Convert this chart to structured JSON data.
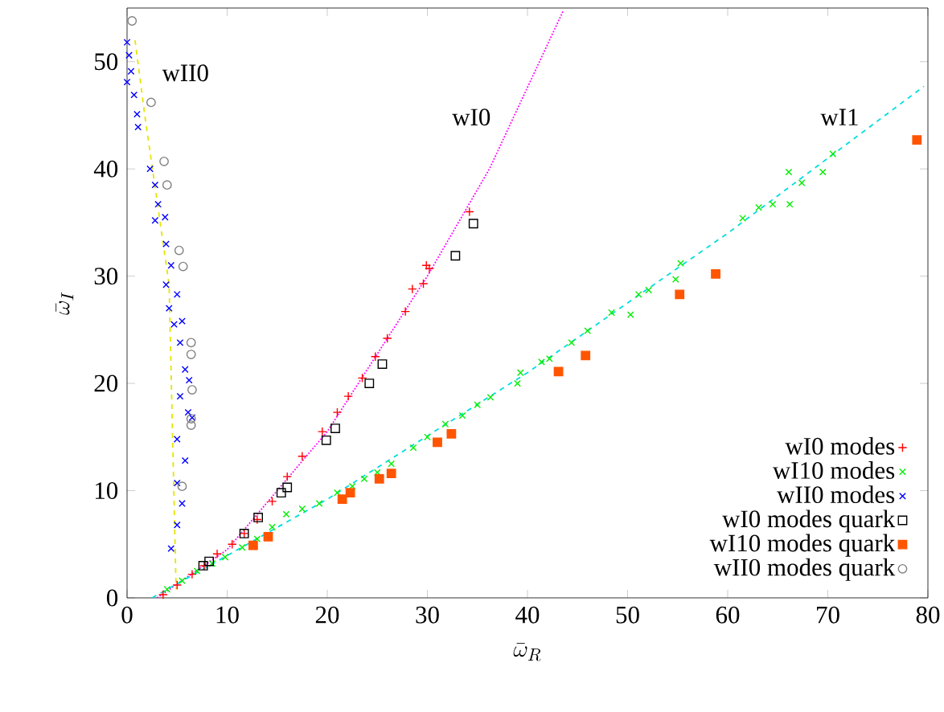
{
  "chart_data": {
    "type": "scatter",
    "xlabel": "\\bar{\\omega}_R",
    "ylabel": "\\bar{\\omega}_I",
    "xlim": [
      0,
      80
    ],
    "ylim": [
      0,
      55
    ],
    "xticks": [
      0,
      10,
      20,
      30,
      40,
      50,
      60,
      70,
      80
    ],
    "yticks": [
      0,
      10,
      20,
      30,
      40,
      50
    ],
    "grid": false,
    "legend": "bottom right",
    "annotations": [
      "wII0",
      "wI0",
      "wI1"
    ],
    "series": [
      {
        "name": "wI0 modes",
        "color": "#ff0000",
        "marker": "plus",
        "x": [
          3.6,
          5,
          6.5,
          7.7,
          9,
          10.5,
          11.7,
          13,
          14.5,
          16,
          17.5,
          19.5,
          21,
          22.1,
          23.5,
          24.8,
          26,
          27.8,
          28.5,
          29.6,
          29.9,
          30.2,
          34.2
        ],
        "values": [
          0.3,
          1.2,
          2.2,
          3.0,
          4.1,
          5.0,
          6.0,
          7.3,
          9.0,
          11.3,
          13.2,
          15.5,
          17.3,
          18.8,
          20.5,
          22.5,
          24.2,
          26.7,
          28.8,
          29.3,
          31.0,
          30.7,
          36.0
        ]
      },
      {
        "name": "wI10 modes",
        "color": "#00ee00",
        "marker": "cross",
        "x": [
          4,
          5.5,
          7,
          8.5,
          9.8,
          11.5,
          13,
          14.5,
          15.9,
          17.5,
          19.2,
          21,
          22.5,
          23.7,
          25,
          26.4,
          28.6,
          30,
          31.8,
          33.5,
          35,
          36.3,
          39,
          39.3,
          41.4,
          42.2,
          44.4,
          46,
          48.4,
          50.3,
          51.1,
          52.1,
          54.8,
          55.3,
          61.5,
          63.1,
          64.5,
          66.1,
          66.2,
          67.4,
          69.5,
          70.5
        ],
        "values": [
          0.8,
          1.6,
          2.5,
          3.2,
          3.8,
          4.7,
          5.5,
          6.6,
          7.8,
          8.3,
          8.8,
          9.8,
          10.4,
          11.1,
          11.7,
          12.5,
          14.0,
          15.0,
          16.2,
          17.0,
          18.0,
          18.7,
          20.0,
          21.0,
          22.0,
          22.3,
          23.8,
          24.9,
          26.6,
          26.4,
          28.3,
          28.7,
          29.7,
          31.2,
          35.4,
          36.4,
          36.7,
          39.7,
          36.7,
          38.7,
          39.7,
          41.4
        ]
      },
      {
        "name": "wII0 modes",
        "color": "#0000ff",
        "marker": "cross",
        "x": [
          0,
          0.2,
          0.4,
          0,
          0.7,
          1.0,
          1.1,
          2.3,
          2.8,
          3.1,
          2.8,
          3.8,
          3.9,
          4.4,
          3.9,
          5,
          4.2,
          4.7,
          5.5,
          5.3,
          5.8,
          6.2,
          5.3,
          6.5,
          6.1,
          5,
          5.8,
          5,
          5.5,
          5,
          4.4
        ],
        "values": [
          51.8,
          50.6,
          49.1,
          48.1,
          46.9,
          45.1,
          43.9,
          40.0,
          38.5,
          36.7,
          35.2,
          35.5,
          33.0,
          31.0,
          29.2,
          28.3,
          27.0,
          25.5,
          25.8,
          23.8,
          21.3,
          20.3,
          18.8,
          16.8,
          17.3,
          14.8,
          12.8,
          10.7,
          8.8,
          6.8,
          4.6
        ]
      },
      {
        "name": "wI0 modes quark",
        "color": "#000000",
        "marker": "square open",
        "x": [
          7.6,
          8.2,
          11.7,
          13.1,
          15.4,
          16,
          19.9,
          20.8,
          24.2,
          25.5,
          32.8,
          34.6
        ],
        "values": [
          3.0,
          3.4,
          6.0,
          7.5,
          9.8,
          10.3,
          14.7,
          15.8,
          20.0,
          21.8,
          31.9,
          34.9
        ]
      },
      {
        "name": "wI10 modes quark",
        "color": "#ff5500",
        "marker": "square",
        "x": [
          12.6,
          14.1,
          21.5,
          22.3,
          25.2,
          26.4,
          31,
          32.4,
          43.1,
          45.8,
          55.2,
          58.8,
          78.9
        ],
        "values": [
          4.9,
          5.7,
          9.2,
          9.8,
          11.1,
          11.6,
          14.5,
          15.3,
          21.1,
          22.6,
          28.3,
          30.2,
          42.7
        ]
      },
      {
        "name": "wII0 modes quark",
        "color": "#808080",
        "marker": "circle open",
        "x": [
          0.5,
          2.4,
          3.7,
          4.0,
          5.2,
          5.6,
          6.4,
          6.4,
          6.5,
          6.4,
          6.4,
          5.5
        ],
        "values": [
          53.8,
          46.2,
          40.7,
          38.5,
          32.4,
          30.9,
          23.8,
          22.7,
          19.4,
          16.7,
          16.1,
          10.4
        ]
      },
      {
        "type": "line",
        "color": "#ff00ff",
        "line_style": "dotted",
        "x": [
          3,
          10,
          20,
          30,
          36.2,
          43.6
        ],
        "values": [
          0,
          4.5,
          15.5,
          30,
          40,
          54.8
        ]
      },
      {
        "type": "line",
        "color": "#00dddd",
        "line_style": "dashed",
        "x": [
          2.5,
          20,
          40,
          60,
          79.6
        ],
        "values": [
          0,
          9.2,
          21,
          34,
          47.7
        ]
      },
      {
        "type": "line",
        "color": "#e5e500",
        "line_style": "dashed",
        "x": [
          0.8,
          1.8,
          4.2,
          4.9
        ],
        "values": [
          52,
          44.8,
          29.2,
          0.8
        ]
      }
    ]
  }
}
